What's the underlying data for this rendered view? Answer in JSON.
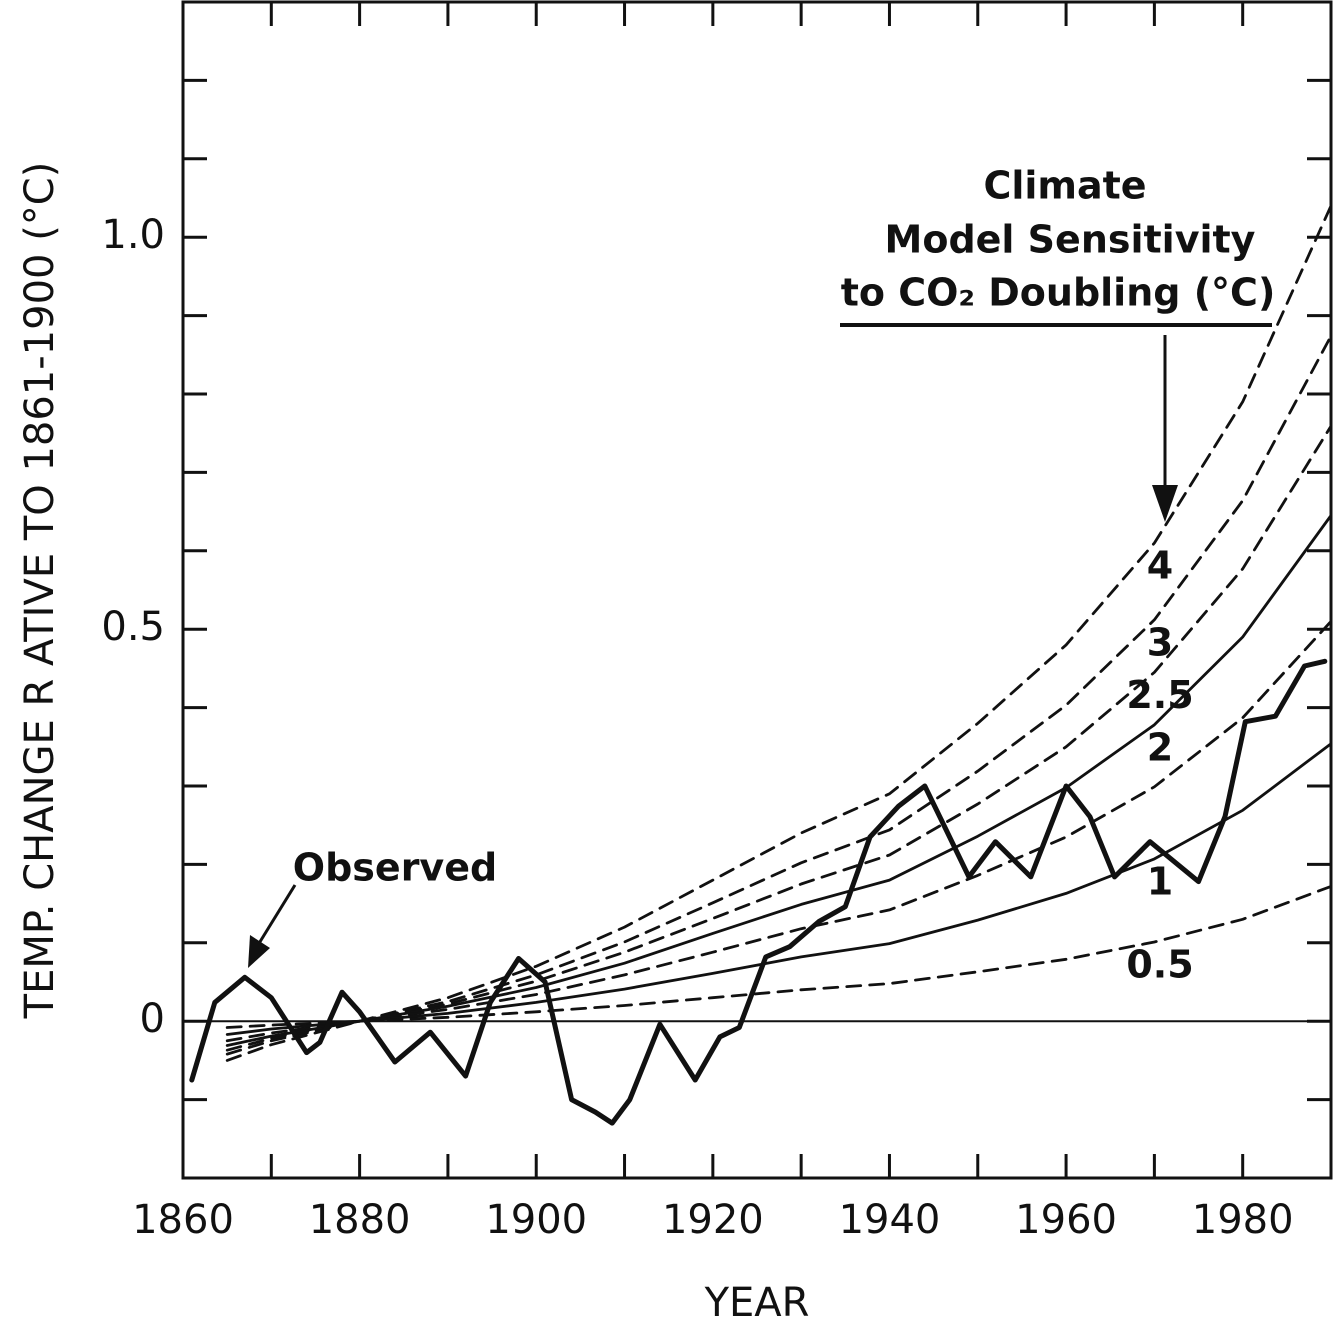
{
  "chart_data": {
    "type": "line",
    "x_label": "YEAR",
    "y_label": "TEMP. CHANGE R    ATIVE TO 1861-1900 (°C)",
    "annotations": {
      "observed": "Observed",
      "legend_title": [
        "Climate",
        "Model Sensitivity",
        "to CO₂ Doubling (°C)"
      ]
    },
    "xlim": [
      1860,
      1990
    ],
    "ylim": [
      -0.2,
      1.3
    ],
    "xticks": [
      1860,
      1880,
      1900,
      1920,
      1940,
      1960,
      1980
    ],
    "xminorticks": [
      1870,
      1890,
      1910,
      1930,
      1950,
      1970
    ],
    "yticks": [
      0,
      0.5,
      {
        "value": 1,
        "label": "1.0"
      }
    ],
    "yminorticks": [
      -0.2,
      -0.1,
      0.1,
      0.2,
      0.3,
      0.4,
      0.6,
      0.7,
      0.8,
      0.9,
      1.1,
      1.2
    ],
    "x": [
      1865,
      1870,
      1880,
      1890,
      1900,
      1910,
      1920,
      1930,
      1940,
      1950,
      1960,
      1970,
      1980,
      1990
    ],
    "series": [
      {
        "name": "4",
        "style": "dashed",
        "color": "#111",
        "values": [
          -0.05,
          -0.03,
          0,
          0.03,
          0.07,
          0.12,
          0.18,
          0.24,
          0.29,
          0.38,
          0.48,
          0.61,
          0.79,
          1.04
        ]
      },
      {
        "name": "3",
        "style": "dashed",
        "color": "#111",
        "values": [
          -0.042,
          -0.025,
          0,
          0.025,
          0.059,
          0.101,
          0.151,
          0.202,
          0.244,
          0.319,
          0.403,
          0.512,
          0.664,
          0.874
        ]
      },
      {
        "name": "2.5",
        "style": "dashed",
        "color": "#111",
        "values": [
          -0.037,
          -0.022,
          0,
          0.022,
          0.051,
          0.088,
          0.131,
          0.175,
          0.212,
          0.277,
          0.35,
          0.445,
          0.577,
          0.759
        ]
      },
      {
        "name": "2",
        "style": "solid",
        "color": "#111",
        "values": [
          -0.031,
          -0.019,
          0,
          0.019,
          0.043,
          0.074,
          0.112,
          0.149,
          0.18,
          0.236,
          0.298,
          0.378,
          0.49,
          0.645
        ]
      },
      {
        "name": null,
        "style": "dashed",
        "color": "#111",
        "values": [
          -0.025,
          -0.015,
          0,
          0.015,
          0.034,
          0.059,
          0.088,
          0.118,
          0.142,
          0.186,
          0.235,
          0.299,
          0.387,
          0.51
        ]
      },
      {
        "name": "1",
        "style": "solid",
        "color": "#111",
        "values": [
          -0.017,
          -0.01,
          0,
          0.01,
          0.024,
          0.041,
          0.061,
          0.082,
          0.099,
          0.129,
          0.163,
          0.207,
          0.269,
          0.354
        ]
      },
      {
        "name": "0.5",
        "style": "dashed",
        "color": "#111",
        "values": [
          -0.008,
          -0.005,
          0,
          0.005,
          0.012,
          0.02,
          0.03,
          0.04,
          0.048,
          0.063,
          0.079,
          0.101,
          0.13,
          0.172
        ]
      },
      {
        "name": "Observed",
        "style": "observed",
        "color": "#111",
        "x": [
          1861,
          1863.6,
          1867,
          1870,
          1874,
          1875.5,
          1878,
          1880,
          1884,
          1888,
          1892,
          1894.8,
          1898,
          1901,
          1904,
          1906.7,
          1908.6,
          1910.6,
          1914,
          1918,
          1920.8,
          1923,
          1926,
          1928.7,
          1932,
          1935,
          1937.8,
          1941,
          1944,
          1946,
          1949,
          1952,
          1956,
          1960,
          1962.7,
          1965.5,
          1969.5,
          1975,
          1978,
          1980.3,
          1983.7,
          1987,
          1989.3
        ],
        "values": [
          -0.075,
          0.024,
          0.056,
          0.03,
          -0.04,
          -0.027,
          0.037,
          0.012,
          -0.052,
          -0.014,
          -0.07,
          0.024,
          0.08,
          0.05,
          -0.1,
          -0.116,
          -0.13,
          -0.1,
          -0.004,
          -0.075,
          -0.02,
          -0.008,
          0.082,
          0.095,
          0.127,
          0.146,
          0.235,
          0.274,
          0.3,
          0.254,
          0.184,
          0.229,
          0.184,
          0.3,
          0.261,
          0.184,
          0.229,
          0.178,
          0.261,
          0.382,
          0.389,
          0.453,
          0.459
        ]
      }
    ]
  }
}
